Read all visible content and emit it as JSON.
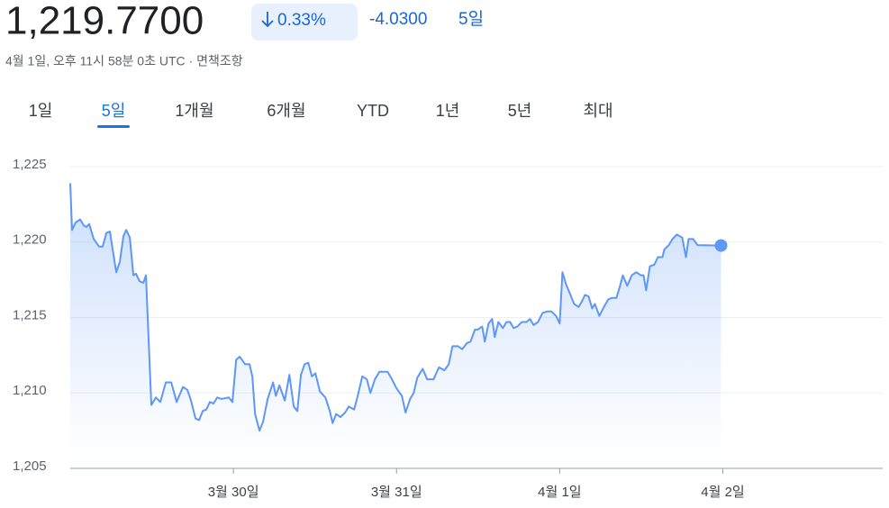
{
  "header": {
    "price": "1,219.7700",
    "change_pct": "0.33%",
    "change_abs": "-4.0300",
    "period": "5일",
    "timestamp": "4월 1일, 오후 11시 58분 0초 UTC · 면책조항"
  },
  "tabs": {
    "items": [
      "1일",
      "5일",
      "1개월",
      "6개월",
      "YTD",
      "1년",
      "5년",
      "최대"
    ],
    "selected": 1
  },
  "chart_data": {
    "type": "line",
    "x": [
      0,
      0.011,
      0.033,
      0.061,
      0.083,
      0.099,
      0.116,
      0.144,
      0.177,
      0.199,
      0.221,
      0.243,
      0.282,
      0.304,
      0.326,
      0.343,
      0.365,
      0.387,
      0.403,
      0.425,
      0.448,
      0.464,
      0.497,
      0.525,
      0.552,
      0.586,
      0.619,
      0.652,
      0.691,
      0.718,
      0.74,
      0.768,
      0.79,
      0.812,
      0.834,
      0.856,
      0.878,
      0.901,
      0.928,
      0.972,
      0.994,
      1.017,
      1.039,
      1.072,
      1.099,
      1.116,
      1.133,
      1.16,
      1.182,
      1.21,
      1.243,
      1.26,
      1.282,
      1.315,
      1.343,
      1.37,
      1.392,
      1.414,
      1.436,
      1.459,
      1.481,
      1.503,
      1.53,
      1.564,
      1.591,
      1.608,
      1.63,
      1.657,
      1.685,
      1.707,
      1.74,
      1.762,
      1.79,
      1.818,
      1.84,
      1.867,
      1.895,
      1.945,
      1.972,
      2.0,
      2.033,
      2.055,
      2.083,
      2.105,
      2.127,
      2.16,
      2.188,
      2.227,
      2.26,
      2.293,
      2.32,
      2.343,
      2.376,
      2.403,
      2.431,
      2.453,
      2.481,
      2.497,
      2.525,
      2.541,
      2.564,
      2.586,
      2.602,
      2.624,
      2.652,
      2.674,
      2.696,
      2.718,
      2.74,
      2.768,
      2.796,
      2.818,
      2.84,
      2.867,
      2.895,
      2.923,
      2.95,
      2.978,
      3.0,
      3.017,
      3.039,
      3.066,
      3.088,
      3.116,
      3.138,
      3.155,
      3.177,
      3.199,
      3.216,
      3.243,
      3.271,
      3.298,
      3.32,
      3.348,
      3.37,
      3.387,
      3.414,
      3.442,
      3.47,
      3.497,
      3.514,
      3.53,
      3.553,
      3.58,
      3.602,
      3.63,
      3.641,
      3.669,
      3.691,
      3.718,
      3.751,
      3.774,
      3.79,
      3.818,
      3.845,
      3.989
    ],
    "series": [
      {
        "color": "#5e97f6",
        "values": [
          1223.9,
          1220.8,
          1221.3,
          1221.5,
          1221.1,
          1221.0,
          1221.2,
          1220.2,
          1219.7,
          1219.7,
          1220.6,
          1220.7,
          1218.0,
          1218.7,
          1220.4,
          1220.8,
          1220.3,
          1217.8,
          1217.9,
          1217.4,
          1217.3,
          1217.8,
          1209.2,
          1209.7,
          1209.4,
          1210.7,
          1210.7,
          1209.4,
          1210.4,
          1210.2,
          1209.5,
          1208.3,
          1208.2,
          1208.8,
          1208.9,
          1209.4,
          1209.3,
          1209.7,
          1209.6,
          1209.7,
          1209.4,
          1212.2,
          1212.4,
          1211.9,
          1211.9,
          1211.1,
          1208.6,
          1207.5,
          1208.1,
          1209.6,
          1210.7,
          1209.8,
          1210.5,
          1209.5,
          1211.2,
          1209.1,
          1208.8,
          1211.2,
          1211.9,
          1212.0,
          1211.1,
          1211.3,
          1210.1,
          1209.7,
          1208.8,
          1208.0,
          1208.6,
          1208.4,
          1208.7,
          1209.1,
          1208.9,
          1209.8,
          1211.1,
          1210.9,
          1210.0,
          1210.9,
          1211.4,
          1211.4,
          1210.9,
          1210.3,
          1209.8,
          1208.7,
          1209.6,
          1210.0,
          1211.0,
          1211.6,
          1210.9,
          1210.9,
          1211.7,
          1211.5,
          1211.9,
          1213.1,
          1213.1,
          1212.9,
          1213.3,
          1213.4,
          1214.2,
          1214.2,
          1214.4,
          1213.4,
          1214.6,
          1214.9,
          1213.7,
          1214.7,
          1214.3,
          1214.7,
          1214.7,
          1214.3,
          1214.4,
          1214.7,
          1214.7,
          1214.9,
          1214.5,
          1214.7,
          1215.3,
          1215.4,
          1215.4,
          1215.1,
          1214.6,
          1218.0,
          1217.2,
          1216.5,
          1215.9,
          1215.7,
          1216.1,
          1216.5,
          1216.4,
          1215.6,
          1215.9,
          1215.1,
          1215.7,
          1216.2,
          1216.3,
          1216.3,
          1217.1,
          1217.8,
          1217.1,
          1217.8,
          1218.0,
          1217.8,
          1217.8,
          1216.8,
          1218.4,
          1218.5,
          1219.0,
          1219.0,
          1219.5,
          1219.8,
          1220.2,
          1220.5,
          1220.3,
          1219.0,
          1220.2,
          1220.2,
          1219.8,
          1219.77
        ]
      }
    ],
    "xlim": [
      0,
      4.98
    ],
    "xticks": [
      {
        "value": 1,
        "label": "3월 30일"
      },
      {
        "value": 2,
        "label": "3월 31일"
      },
      {
        "value": 3,
        "label": "4월 1일"
      },
      {
        "value": 4,
        "label": "4월 2일"
      }
    ],
    "ylim": [
      1205,
      1225
    ],
    "yticks": [
      {
        "value": 1205,
        "label": "1,205"
      },
      {
        "value": 1210,
        "label": "1,210"
      },
      {
        "value": 1215,
        "label": "1,215"
      },
      {
        "value": 1220,
        "label": "1,220"
      },
      {
        "value": 1225,
        "label": "1,225"
      }
    ],
    "grid": true
  }
}
